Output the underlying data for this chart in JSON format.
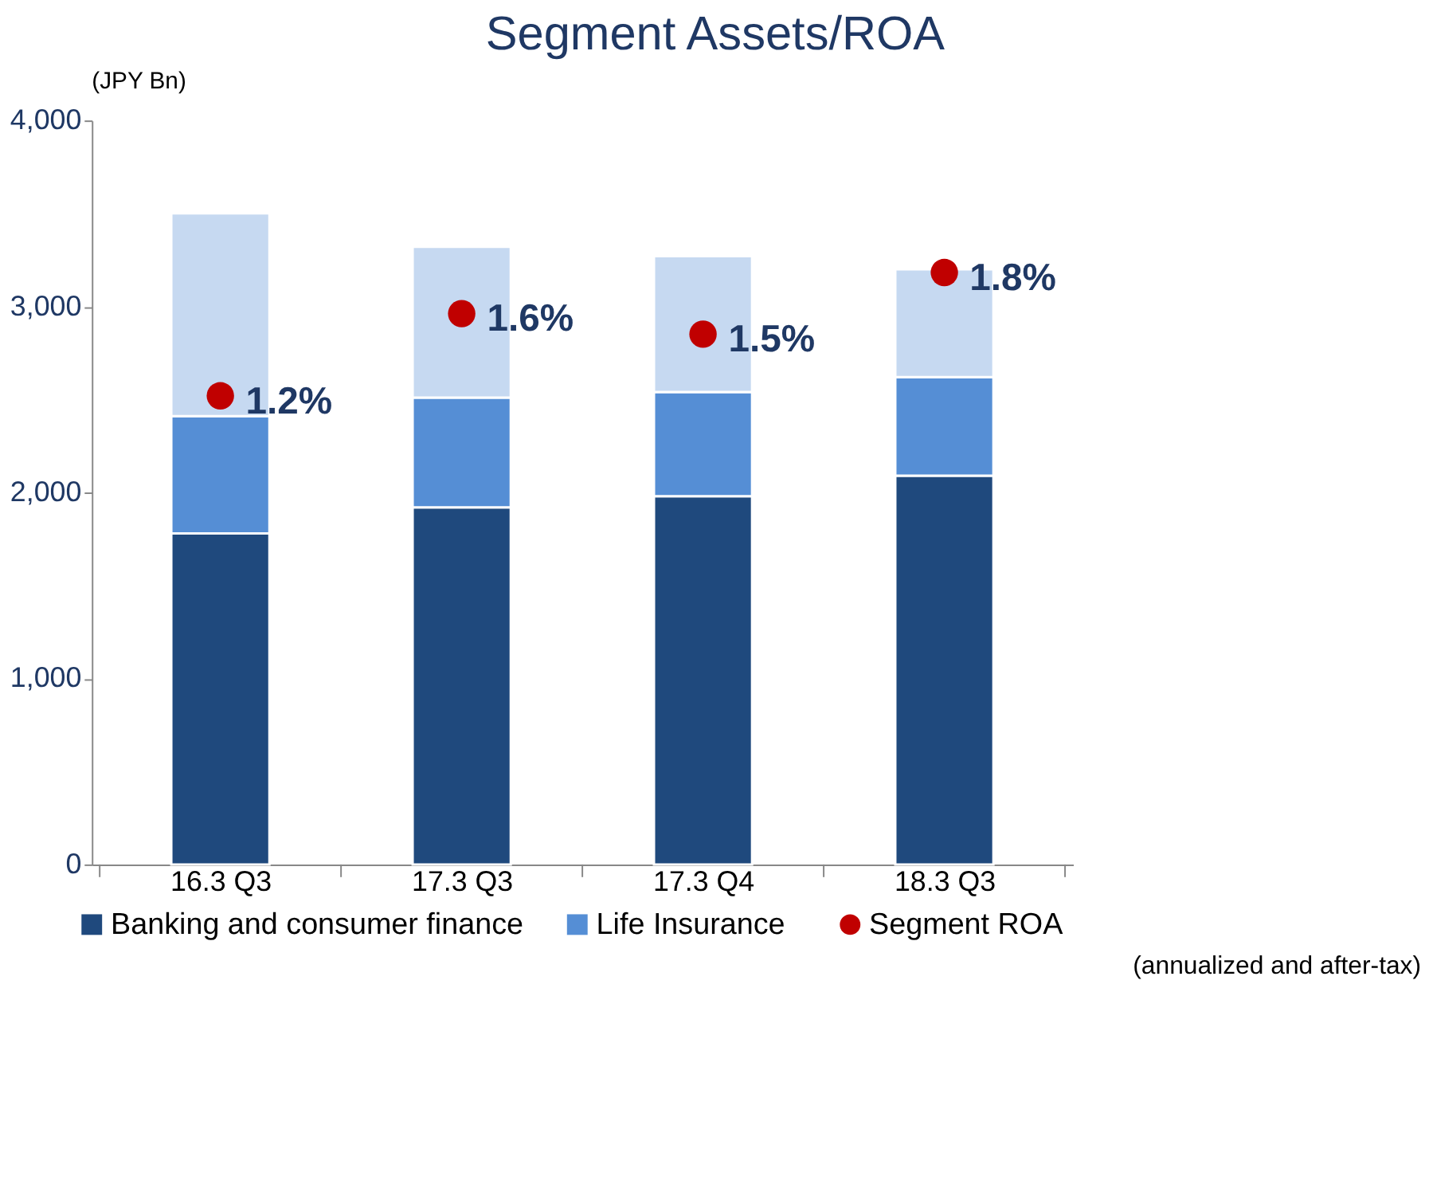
{
  "chart_data": {
    "type": "bar",
    "title": "Segment Assets/ROA",
    "ylabel": "(JPY Bn)",
    "categories": [
      "16.3 Q3",
      "17.3 Q3",
      "17.3 Q4",
      "18.3 Q3"
    ],
    "stacked": true,
    "series": [
      {
        "name": "Banking and consumer finance",
        "color": "#1f497d",
        "values": [
          1780,
          1920,
          1980,
          2090
        ]
      },
      {
        "name": "Life Insurance",
        "color": "#558ed5",
        "values": [
          630,
          590,
          560,
          530
        ]
      },
      {
        "color": "#c6d9f1",
        "values": [
          1090,
          810,
          730,
          580
        ]
      },
      {
        "name": "Segment ROA",
        "type": "scatter",
        "axis": "y2",
        "color": "#c00000",
        "values": [
          1.2,
          1.6,
          1.5,
          1.8
        ],
        "value_labels": [
          "1.2%",
          "1.6%",
          "1.5%",
          "1.8%"
        ]
      }
    ],
    "ylim": [
      0,
      4000
    ],
    "yticks": [
      {
        "value": 0,
        "label": "0"
      },
      {
        "value": 1000,
        "label": "1,000"
      },
      {
        "value": 2000,
        "label": "2,000"
      },
      {
        "value": 3000,
        "label": "3,000"
      },
      {
        "value": 4000,
        "label": "4,000"
      }
    ],
    "y2lim": [
      -1.08,
      2.54
    ],
    "legend": "bottom",
    "marker": "circle",
    "grid": false,
    "annotations": [
      "(annualized and after-tax)"
    ]
  }
}
